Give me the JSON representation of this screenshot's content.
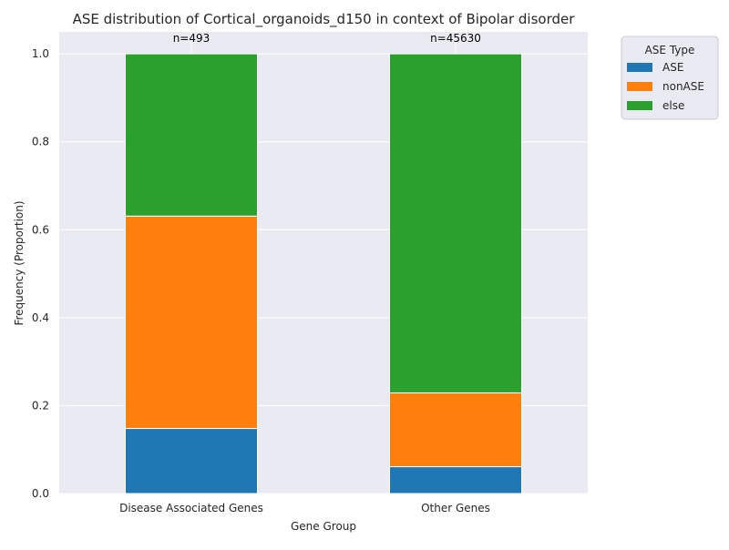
{
  "chart_data": {
    "type": "bar",
    "stacked": true,
    "title": "ASE distribution of Cortical_organoids_d150 in context of Bipolar disorder",
    "xlabel": "Gene Group",
    "ylabel": "Frequency (Proportion)",
    "categories": [
      "Disease Associated Genes",
      "Other Genes"
    ],
    "series": [
      {
        "name": "ASE",
        "color": "#1f77b4",
        "values": [
          0.148,
          0.061
        ]
      },
      {
        "name": "nonASE",
        "color": "#ff7f0e",
        "values": [
          0.483,
          0.168
        ]
      },
      {
        "name": "else",
        "color": "#2ca02c",
        "values": [
          0.369,
          0.771
        ]
      }
    ],
    "sample_sizes": [
      "n=493",
      "n=45630"
    ],
    "ylim": [
      0,
      1.05
    ],
    "yticks": [
      0.0,
      0.2,
      0.4,
      0.6,
      0.8,
      1.0
    ],
    "ytick_labels": [
      "0.0",
      "0.2",
      "0.4",
      "0.6",
      "0.8",
      "1.0"
    ],
    "grid": true,
    "legend": {
      "title": "ASE Type",
      "placement": "outside-top-right"
    },
    "colors": {
      "plot_background": "#eaeaf2",
      "grid": "#ffffff",
      "text": "#262626"
    }
  }
}
